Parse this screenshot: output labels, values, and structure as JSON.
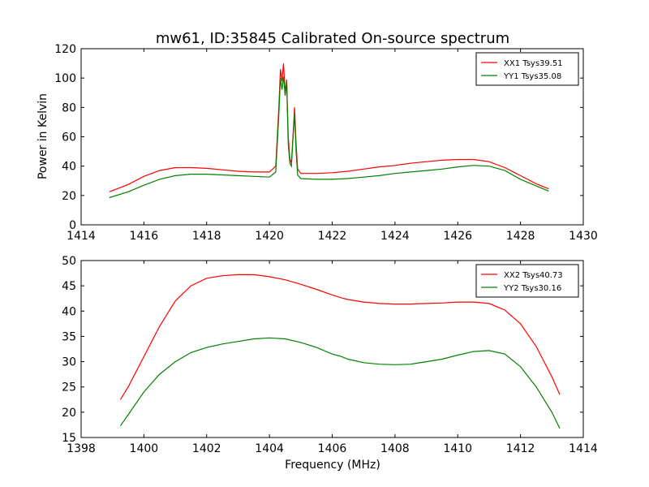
{
  "chart_data": [
    {
      "type": "line",
      "title": "mw61, ID:35845 Calibrated On-source spectrum",
      "xlabel": "",
      "ylabel": "Power in Kelvin",
      "xlim": [
        1414,
        1430
      ],
      "ylim": [
        0,
        120
      ],
      "xticks": [
        1414,
        1416,
        1418,
        1420,
        1422,
        1424,
        1426,
        1428,
        1430
      ],
      "yticks": [
        0,
        20,
        40,
        60,
        80,
        100,
        120
      ],
      "legend_position": "top-right",
      "grid": false,
      "series": [
        {
          "name": "XX1 Tsys39.51",
          "color": "#ff0000",
          "x": [
            1414.9,
            1415.5,
            1416.0,
            1416.5,
            1417.0,
            1417.5,
            1418.0,
            1418.5,
            1419.0,
            1419.5,
            1420.0,
            1420.2,
            1420.3,
            1420.35,
            1420.4,
            1420.45,
            1420.5,
            1420.55,
            1420.6,
            1420.65,
            1420.7,
            1420.75,
            1420.8,
            1420.85,
            1420.9,
            1421.0,
            1421.5,
            1422.0,
            1422.5,
            1423.0,
            1423.5,
            1424.0,
            1424.5,
            1425.0,
            1425.5,
            1426.0,
            1426.5,
            1427.0,
            1427.5,
            1428.0,
            1428.5,
            1428.9
          ],
          "y": [
            22.5,
            27.5,
            33,
            37,
            39,
            39,
            38.5,
            37.5,
            36.5,
            36,
            36,
            40,
            80,
            106,
            98,
            110,
            90,
            99,
            60,
            45,
            42,
            60,
            80,
            55,
            38,
            35,
            35,
            35.5,
            36.5,
            38,
            39.5,
            40.5,
            42,
            43,
            44,
            44.5,
            44.5,
            43,
            39,
            33.5,
            28,
            24.5
          ]
        },
        {
          "name": "YY1 Tsys35.08",
          "color": "#008000",
          "x": [
            1414.9,
            1415.5,
            1416.0,
            1416.5,
            1417.0,
            1417.5,
            1418.0,
            1418.5,
            1419.0,
            1419.5,
            1420.0,
            1420.2,
            1420.3,
            1420.35,
            1420.4,
            1420.45,
            1420.5,
            1420.55,
            1420.6,
            1420.65,
            1420.7,
            1420.75,
            1420.8,
            1420.85,
            1420.9,
            1421.0,
            1421.5,
            1422.0,
            1422.5,
            1423.0,
            1423.5,
            1424.0,
            1424.5,
            1425.0,
            1425.5,
            1426.0,
            1426.5,
            1427.0,
            1427.5,
            1428.0,
            1428.5,
            1428.9
          ],
          "y": [
            18.5,
            22.5,
            27,
            31,
            33.5,
            34.5,
            34.5,
            34,
            33.5,
            33,
            32.5,
            36,
            75,
            100,
            92,
            101,
            88,
            97,
            55,
            42,
            40,
            58,
            76,
            50,
            34,
            31.5,
            31,
            31,
            31.5,
            32.5,
            33.5,
            35,
            36,
            37,
            38,
            39.5,
            40.5,
            40,
            37,
            31,
            26.5,
            23
          ]
        }
      ]
    },
    {
      "type": "line",
      "title": "",
      "xlabel": "Frequency (MHz)",
      "ylabel": "",
      "xlim": [
        1398,
        1414
      ],
      "ylim": [
        15,
        50
      ],
      "xticks": [
        1398,
        1400,
        1402,
        1404,
        1406,
        1408,
        1410,
        1412,
        1414
      ],
      "yticks": [
        15,
        20,
        25,
        30,
        35,
        40,
        45,
        50
      ],
      "legend_position": "top-right",
      "grid": false,
      "series": [
        {
          "name": "XX2 Tsys40.73",
          "color": "#ff0000",
          "x": [
            1399.25,
            1399.5,
            1400.0,
            1400.5,
            1401.0,
            1401.5,
            1402.0,
            1402.5,
            1403.0,
            1403.5,
            1404.0,
            1404.5,
            1405.0,
            1405.5,
            1406.0,
            1406.3,
            1406.5,
            1407.0,
            1407.5,
            1408.0,
            1408.5,
            1409.0,
            1409.5,
            1410.0,
            1410.5,
            1411.0,
            1411.5,
            1412.0,
            1412.5,
            1413.0,
            1413.25
          ],
          "y": [
            22.5,
            25,
            31,
            37,
            42,
            45,
            46.5,
            47,
            47.2,
            47.2,
            46.8,
            46.2,
            45.3,
            44.3,
            43.2,
            42.6,
            42.3,
            41.8,
            41.5,
            41.4,
            41.4,
            41.5,
            41.6,
            41.8,
            41.8,
            41.5,
            40.2,
            37.5,
            33,
            27,
            23.5
          ]
        },
        {
          "name": "YY2 Tsys30.16",
          "color": "#008000",
          "x": [
            1399.25,
            1399.5,
            1400.0,
            1400.5,
            1401.0,
            1401.5,
            1402.0,
            1402.5,
            1403.0,
            1403.5,
            1404.0,
            1404.5,
            1405.0,
            1405.5,
            1406.0,
            1406.3,
            1406.5,
            1407.0,
            1407.5,
            1408.0,
            1408.5,
            1409.0,
            1409.5,
            1410.0,
            1410.5,
            1411.0,
            1411.5,
            1412.0,
            1412.5,
            1413.0,
            1413.25
          ],
          "y": [
            17.3,
            19.5,
            24,
            27.5,
            30,
            31.8,
            32.8,
            33.5,
            34,
            34.5,
            34.7,
            34.5,
            33.8,
            32.8,
            31.5,
            31,
            30.5,
            29.8,
            29.5,
            29.4,
            29.5,
            30,
            30.5,
            31.3,
            32,
            32.2,
            31.5,
            29,
            25,
            20,
            16.8
          ]
        }
      ]
    }
  ]
}
